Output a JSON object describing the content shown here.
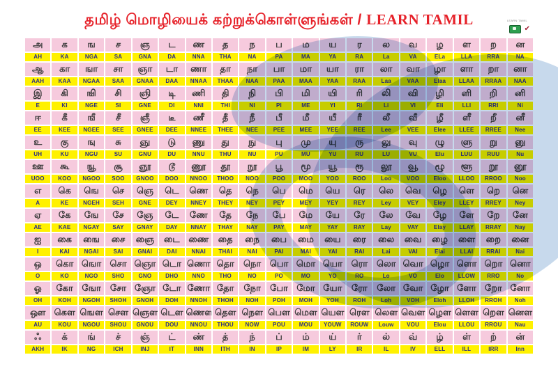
{
  "title": {
    "tamil": "தமிழ் மொழியைக் கற்றுக்கொள்ளுங்கள்",
    "separator": " / ",
    "english": "LEARN TAMIL"
  },
  "corner": {
    "label": "LEARN TAMIL",
    "logos": [
      "green-book-logo",
      "red-check-logo"
    ],
    "check_glyph": "✔"
  },
  "colors": {
    "title_red": "#e62129",
    "cell_pink": "#f6cadd",
    "cell_yellow": "#fff100",
    "roman_navy": "#2b2e83",
    "tamil_ink": "#3a3a3a",
    "watermark_blue": "#bdd3e9",
    "logo_green": "#2e9e4f",
    "logo_red": "#a32035"
  },
  "table": {
    "columns": 19,
    "rows": [
      {
        "tamil": [
          "அ",
          "க",
          "ங",
          "ச",
          "ஞ",
          "ட",
          "ண",
          "த",
          "ந",
          "ப",
          "ம",
          "ய",
          "ர",
          "ல",
          "வ",
          "ழ",
          "ள",
          "ற",
          "ன"
        ],
        "roman": [
          "AH",
          "KA",
          "NGA",
          "SA",
          "GNA",
          "DA",
          "NNA",
          "THA",
          "NA",
          "PA",
          "MA",
          "YA",
          "RA",
          "La",
          "VA",
          "ELa",
          "LLA",
          "RRA",
          "NA"
        ]
      },
      {
        "tamil": [
          "ஆ",
          "கா",
          "ஙா",
          "சா",
          "ஞா",
          "டா",
          "ணா",
          "தா",
          "நா",
          "பா",
          "மா",
          "யா",
          "ரா",
          "லா",
          "வா",
          "ழா",
          "ளா",
          "றா",
          "னா"
        ],
        "roman": [
          "AAH",
          "KAA",
          "NGAA",
          "SAA",
          "GNAA",
          "DAA",
          "NNAA",
          "THAA",
          "NAA",
          "PAA",
          "MAA",
          "YAA",
          "RAA",
          "Laa",
          "VAA",
          "Elaa",
          "LLAA",
          "RRAA",
          "NAA"
        ]
      },
      {
        "tamil": [
          "இ",
          "கி",
          "ஙி",
          "சி",
          "ஞி",
          "டி",
          "ணி",
          "தி",
          "நி",
          "பி",
          "மி",
          "யி",
          "ரி",
          "லி",
          "வி",
          "ழி",
          "ளி",
          "றி",
          "னி"
        ],
        "roman": [
          "E",
          "KI",
          "NGE",
          "SI",
          "GNE",
          "DI",
          "NNI",
          "THI",
          "NI",
          "PI",
          "ME",
          "YI",
          "RI",
          "Li",
          "VI",
          "Eli",
          "LLI",
          "RRI",
          "Ni"
        ]
      },
      {
        "tamil": [
          "ஈ",
          "கீ",
          "ஙீ",
          "சீ",
          "ஞீ",
          "டீ",
          "ணீ",
          "தீ",
          "நீ",
          "பீ",
          "மீ",
          "யீ",
          "ரீ",
          "லீ",
          "வீ",
          "ழீ",
          "ளீ",
          "றீ",
          "னீ"
        ],
        "roman": [
          "EE",
          "KEE",
          "NGEE",
          "SEE",
          "GNEE",
          "DEE",
          "NNEE",
          "THEE",
          "NEE",
          "PEE",
          "MEE",
          "YEE",
          "REE",
          "Lee",
          "VEE",
          "Elee",
          "LLEE",
          "RREE",
          "Nee"
        ]
      },
      {
        "tamil": [
          "உ",
          "கு",
          "ஙு",
          "சு",
          "ஞு",
          "டு",
          "ணு",
          "து",
          "நு",
          "பு",
          "மு",
          "யு",
          "ரு",
          "லு",
          "வு",
          "ழு",
          "ளு",
          "று",
          "னு"
        ],
        "roman": [
          "UH",
          "KU",
          "NGU",
          "SU",
          "GNU",
          "DU",
          "NNU",
          "THU",
          "NU",
          "PU",
          "MU",
          "YU",
          "RU",
          "LU",
          "VU",
          "Elu",
          "LUU",
          "RUU",
          "Nu"
        ]
      },
      {
        "tamil": [
          "ஊ",
          "கூ",
          "ஙூ",
          "சூ",
          "ஞூ",
          "டூ",
          "ணூ",
          "தூ",
          "நூ",
          "பூ",
          "மூ",
          "யூ",
          "ரூ",
          "லூ",
          "வூ",
          "ழூ",
          "ளூ",
          "றூ",
          "னூ"
        ],
        "roman": [
          "UOO",
          "KOO",
          "NGOO",
          "SOO",
          "GNOO",
          "DOO",
          "NNOO",
          "THOO",
          "NOO",
          "POO",
          "MOO",
          "YOO",
          "ROO",
          "Loo",
          "VOO",
          "Eloo",
          "LLOO",
          "RROO",
          "Noo"
        ]
      },
      {
        "tamil": [
          "எ",
          "கெ",
          "ஙெ",
          "செ",
          "ஞெ",
          "டெ",
          "ணெ",
          "தெ",
          "நெ",
          "பெ",
          "மெ",
          "யெ",
          "ரெ",
          "லெ",
          "வெ",
          "ழெ",
          "ளெ",
          "றெ",
          "னெ"
        ],
        "roman": [
          "A",
          "KE",
          "NGEH",
          "SEH",
          "GNE",
          "DEY",
          "NNEY",
          "THEY",
          "NEY",
          "PEY",
          "MEY",
          "YEY",
          "REY",
          "Ley",
          "VEY",
          "Eley",
          "LLEY",
          "RREY",
          "Ney"
        ]
      },
      {
        "tamil": [
          "ஏ",
          "கே",
          "ஙே",
          "சே",
          "ஞே",
          "டே",
          "ணே",
          "தே",
          "நே",
          "பே",
          "மே",
          "யே",
          "ரே",
          "லே",
          "வே",
          "ழே",
          "ளே",
          "றே",
          "னே"
        ],
        "roman": [
          "AE",
          "KAE",
          "NGAY",
          "SAY",
          "GNAY",
          "DAY",
          "NNAY",
          "THAY",
          "NAY",
          "PAY",
          "MAY",
          "YAY",
          "RAY",
          "Lay",
          "VAY",
          "Elay",
          "LLAY",
          "RRAY",
          "Nay"
        ]
      },
      {
        "tamil": [
          "ஐ",
          "கை",
          "ஙை",
          "சை",
          "ஞை",
          "டை",
          "ணை",
          "தை",
          "நை",
          "பை",
          "மை",
          "யை",
          "ரை",
          "லை",
          "வை",
          "ழை",
          "ளை",
          "றை",
          "னை"
        ],
        "roman": [
          "I",
          "KAI",
          "NGAI",
          "SAI",
          "GNAI",
          "DAI",
          "NNAI",
          "THAI",
          "NAI",
          "PAI",
          "MAI",
          "YAI",
          "RAI",
          "Lai",
          "VAI",
          "Elai",
          "LLAI",
          "RRAI",
          "Nai"
        ]
      },
      {
        "tamil": [
          "ஒ",
          "கொ",
          "ஙொ",
          "சொ",
          "ஞொ",
          "டொ",
          "ணொ",
          "தொ",
          "நொ",
          "பொ",
          "மொ",
          "யொ",
          "ரொ",
          "லொ",
          "வொ",
          "ழொ",
          "ளொ",
          "றொ",
          "னொ"
        ],
        "roman": [
          "O",
          "KO",
          "NGO",
          "SHO",
          "GNO",
          "DHO",
          "NNO",
          "THO",
          "NO",
          "PO",
          "MO",
          "YO",
          "RO",
          "Lo",
          "VO",
          "Elo",
          "LLOW",
          "RRO",
          "No"
        ]
      },
      {
        "tamil": [
          "ஓ",
          "கோ",
          "ஙோ",
          "சோ",
          "ஞோ",
          "டோ",
          "ணோ",
          "தோ",
          "நோ",
          "போ",
          "மோ",
          "யோ",
          "ரோ",
          "லோ",
          "வோ",
          "ழோ",
          "ளோ",
          "றோ",
          "னோ"
        ],
        "roman": [
          "OH",
          "KOH",
          "NGOH",
          "SHOH",
          "GNOH",
          "DOH",
          "NNOH",
          "THOH",
          "NOH",
          "POH",
          "MOH",
          "YOH",
          "ROH",
          "Loh",
          "VOH",
          "Eloh",
          "LLOH",
          "RROH",
          "Noh"
        ]
      },
      {
        "tamil": [
          "ஔ",
          "கௌ",
          "ஙௌ",
          "சௌ",
          "ஞௌ",
          "டௌ",
          "ணௌ",
          "தௌ",
          "நௌ",
          "பௌ",
          "மௌ",
          "யௌ",
          "ரௌ",
          "லௌ",
          "வௌ",
          "ழௌ",
          "ளௌ",
          "றௌ",
          "னௌ"
        ],
        "roman": [
          "AU",
          "KOU",
          "NGOU",
          "SHOU",
          "GNOU",
          "DOU",
          "NNOU",
          "THOU",
          "NOW",
          "POU",
          "MOU",
          "YOUW",
          "ROUW",
          "Louw",
          "VOU",
          "Elou",
          "LLOU",
          "RROU",
          "Nau"
        ]
      },
      {
        "tamil": [
          "ஃ",
          "க்",
          "ங்",
          "ச்",
          "ஞ்",
          "ட்",
          "ண்",
          "த்",
          "ந்",
          "ப்",
          "ம்",
          "ய்",
          "ர்",
          "ல்",
          "வ்",
          "ழ்",
          "ள்",
          "ற்",
          "ன்"
        ],
        "roman": [
          "AKH",
          "IK",
          "NG",
          "ICH",
          "INJ",
          "IT",
          "INN",
          "ITH",
          "IN",
          "IP",
          "IM",
          "LY",
          "IR",
          "IL",
          "IV",
          "ELL",
          "ILL",
          "IRR",
          "Inn"
        ]
      }
    ]
  }
}
